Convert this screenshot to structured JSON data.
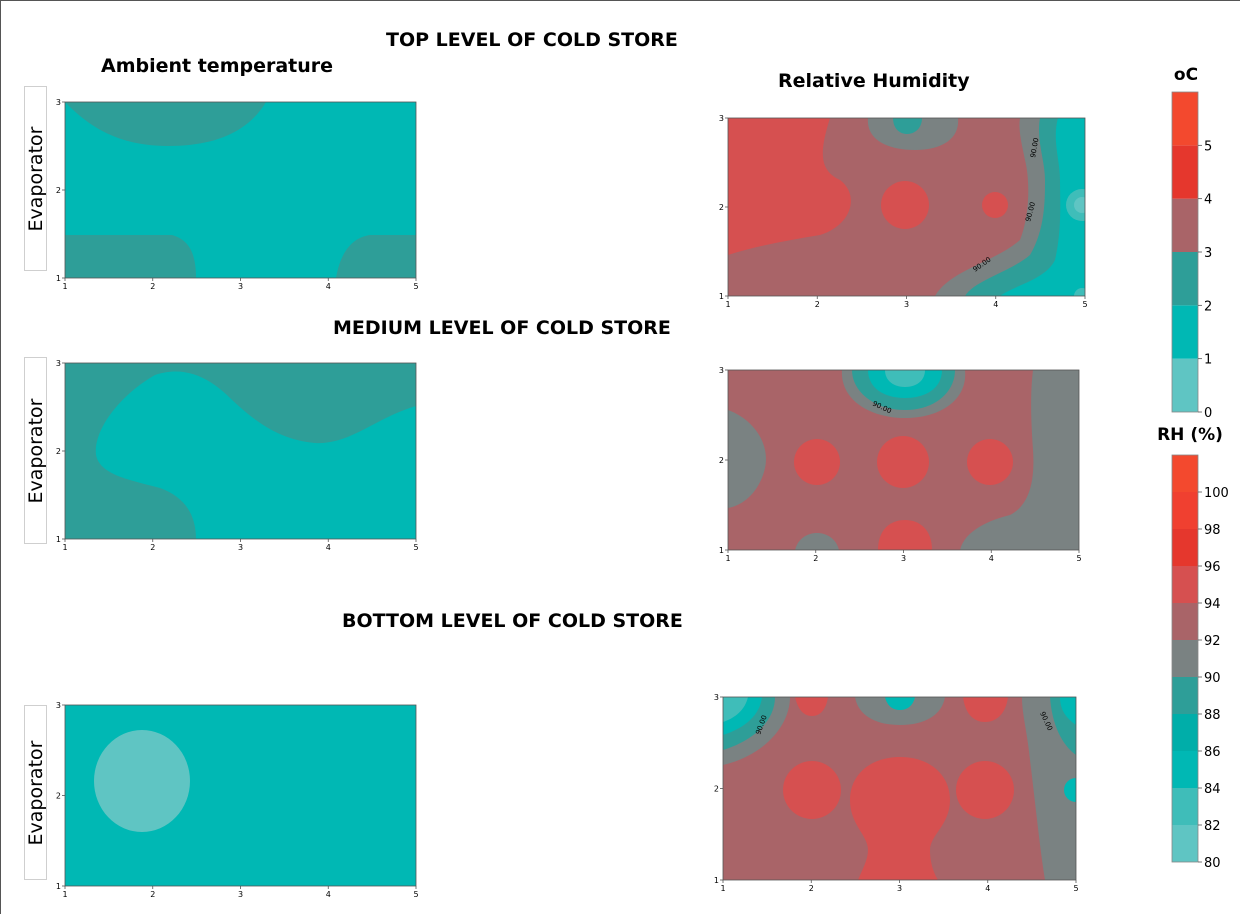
{
  "headings": {
    "top_level": "TOP LEVEL OF COLD STORE",
    "medium_level": "MEDIUM LEVEL OF COLD STORE",
    "bottom_level": "BOTTOM LEVEL OF COLD STORE",
    "ambient_temperature": "Ambient temperature",
    "relative_humidity": "Relative Humidity"
  },
  "evaporator_label": "Evaporator",
  "contour_label": "90.00",
  "colors": {
    "c0": "#5fc5c3",
    "c1": "#00b8b4",
    "c2": "#2e9e98",
    "c3": "#7a8282",
    "c4": "#a96468",
    "c5": "#d65050",
    "c6": "#f3492e",
    "c7": "#e5372d"
  },
  "chart_data": [
    {
      "type": "heatmap",
      "name": "top-temperature",
      "title": "Ambient temperature",
      "x_ticks": [
        "1",
        "2",
        "3",
        "4",
        "5"
      ],
      "y_ticks": [
        "1",
        "2",
        "3"
      ],
      "xlim": [
        1,
        5
      ],
      "ylim": [
        1,
        3
      ],
      "unit": "oC",
      "levels_present": [
        1,
        2
      ]
    },
    {
      "type": "heatmap",
      "name": "top-humidity",
      "title": "Relative Humidity",
      "x_ticks": [
        "1",
        "2",
        "3",
        "4",
        "5"
      ],
      "y_ticks": [
        "1",
        "2",
        "3"
      ],
      "xlim": [
        1,
        5
      ],
      "ylim": [
        1,
        3
      ],
      "unit": "RH (%)",
      "levels_present": [
        84,
        86,
        88,
        90,
        92,
        94,
        96
      ],
      "contour_labels": [
        "90.00",
        "90.00",
        "90.00"
      ]
    },
    {
      "type": "heatmap",
      "name": "medium-temperature",
      "x_ticks": [
        "1",
        "2",
        "3",
        "4",
        "5"
      ],
      "y_ticks": [
        "1",
        "2",
        "3"
      ],
      "xlim": [
        1,
        5
      ],
      "ylim": [
        1,
        3
      ],
      "unit": "oC",
      "levels_present": [
        1,
        2
      ]
    },
    {
      "type": "heatmap",
      "name": "medium-humidity",
      "x_ticks": [
        "1",
        "2",
        "3",
        "4",
        "5"
      ],
      "y_ticks": [
        "1",
        "2",
        "3"
      ],
      "xlim": [
        1,
        5
      ],
      "ylim": [
        1,
        3
      ],
      "unit": "RH (%)",
      "levels_present": [
        84,
        86,
        88,
        90,
        92,
        94,
        96
      ],
      "contour_labels": [
        "90.00"
      ]
    },
    {
      "type": "heatmap",
      "name": "bottom-temperature",
      "x_ticks": [
        "1",
        "2",
        "3",
        "4",
        "5"
      ],
      "y_ticks": [
        "1",
        "2",
        "3"
      ],
      "xlim": [
        1,
        5
      ],
      "ylim": [
        1,
        3
      ],
      "unit": "oC",
      "levels_present": [
        0,
        1
      ]
    },
    {
      "type": "heatmap",
      "name": "bottom-humidity",
      "x_ticks": [
        "1",
        "2",
        "3",
        "4",
        "5"
      ],
      "y_ticks": [
        "1",
        "2",
        "3"
      ],
      "xlim": [
        1,
        5
      ],
      "ylim": [
        1,
        3
      ],
      "unit": "RH (%)",
      "levels_present": [
        80,
        82,
        84,
        86,
        88,
        90,
        92,
        94,
        96
      ],
      "contour_labels": [
        "90.00",
        "90.00"
      ]
    }
  ],
  "colorbars": {
    "temperature": {
      "title": "oC",
      "ticks": [
        "0",
        "1",
        "2",
        "3",
        "4",
        "5"
      ],
      "bands": [
        {
          "from": 0,
          "to": 1,
          "color": "#5fc5c3"
        },
        {
          "from": 1,
          "to": 2,
          "color": "#00b8b4"
        },
        {
          "from": 2,
          "to": 3,
          "color": "#2e9e98"
        },
        {
          "from": 3,
          "to": 4,
          "color": "#a96468"
        },
        {
          "from": 4,
          "to": 5,
          "color": "#e5372d"
        },
        {
          "from": 5,
          "to": 6,
          "color": "#f3492e"
        }
      ]
    },
    "humidity": {
      "title": "RH (%)",
      "ticks": [
        "80",
        "82",
        "84",
        "86",
        "88",
        "90",
        "92",
        "94",
        "96",
        "98",
        "100"
      ],
      "bands": [
        {
          "from": 80,
          "to": 82,
          "color": "#5fc5c3"
        },
        {
          "from": 82,
          "to": 84,
          "color": "#3fbdb9"
        },
        {
          "from": 84,
          "to": 86,
          "color": "#00b8b4"
        },
        {
          "from": 86,
          "to": 88,
          "color": "#00aea9"
        },
        {
          "from": 88,
          "to": 90,
          "color": "#2e9e98"
        },
        {
          "from": 90,
          "to": 92,
          "color": "#7a8282"
        },
        {
          "from": 92,
          "to": 94,
          "color": "#a96468"
        },
        {
          "from": 94,
          "to": 96,
          "color": "#d65050"
        },
        {
          "from": 96,
          "to": 98,
          "color": "#e5372d"
        },
        {
          "from": 98,
          "to": 100,
          "color": "#f04030"
        },
        {
          "from": 100,
          "to": 102,
          "color": "#f3492e"
        }
      ]
    }
  }
}
